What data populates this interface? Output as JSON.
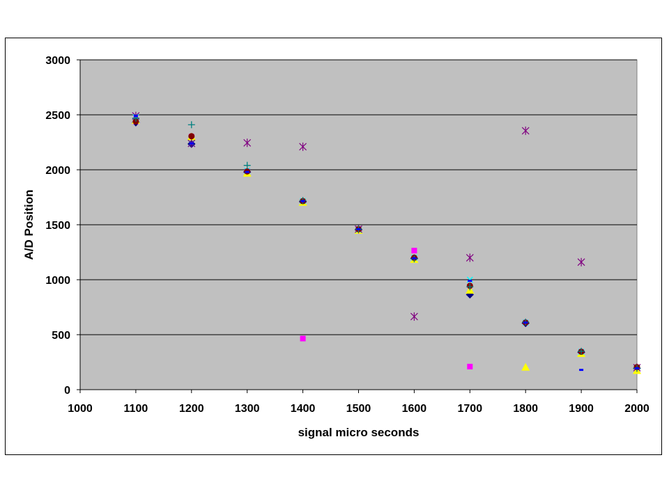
{
  "chart_data": {
    "type": "scatter",
    "title": "",
    "xlabel": "signal micro seconds",
    "ylabel": "A/D Position",
    "xlim": [
      1000,
      2000
    ],
    "ylim": [
      0,
      3000
    ],
    "xticks": [
      1000,
      1100,
      1200,
      1300,
      1400,
      1500,
      1600,
      1700,
      1800,
      1900,
      2000
    ],
    "yticks": [
      0,
      500,
      1000,
      1500,
      2000,
      2500,
      3000
    ],
    "grid": "horizontal",
    "legend": "none",
    "plot_background": "#c0c0c0",
    "series": [
      {
        "color": "#000080",
        "marker": "diamond",
        "x": [
          1100,
          1200,
          1300,
          1400,
          1500,
          1600,
          1700,
          1800,
          1900,
          2000
        ],
        "y": [
          2430,
          2235,
          1980,
          1710,
          1455,
          1195,
          865,
          605,
          340,
          195
        ]
      },
      {
        "color": "#ff00ff",
        "marker": "square",
        "x": [
          1100,
          1200,
          1300,
          1400,
          1500,
          1600,
          1700,
          1800,
          1900,
          2000
        ],
        "y": [
          2440,
          2300,
          1985,
          465,
          1460,
          1265,
          210,
          610,
          345,
          200
        ]
      },
      {
        "color": "#ffff00",
        "marker": "triangle",
        "x": [
          1100,
          1200,
          1300,
          1400,
          1500,
          1600,
          1700,
          1800,
          1900,
          2000
        ],
        "y": [
          2450,
          2300,
          1970,
          1705,
          1450,
          1185,
          905,
          205,
          330,
          175
        ]
      },
      {
        "color": "#00ffff",
        "marker": "x",
        "x": [
          1100,
          1200,
          1300,
          1400,
          1500,
          1600,
          1700,
          1800,
          1900,
          2000
        ],
        "y": [
          2480,
          2240,
          1990,
          1715,
          1455,
          1200,
          1000,
          610,
          345,
          200
        ]
      },
      {
        "color": "#800080",
        "marker": "star",
        "x": [
          1100,
          1200,
          1300,
          1400,
          1500,
          1600,
          1700,
          1800,
          1900,
          2000
        ],
        "y": [
          2490,
          2240,
          2245,
          2210,
          1460,
          665,
          1200,
          2355,
          1160,
          200
        ]
      },
      {
        "color": "#800000",
        "marker": "circle",
        "x": [
          1100,
          1200,
          1300,
          1400,
          1500,
          1600,
          1700,
          1800,
          1900,
          2000
        ],
        "y": [
          2440,
          2305,
          1985,
          1715,
          1460,
          1200,
          945,
          610,
          345,
          205
        ]
      },
      {
        "color": "#008080",
        "marker": "plus",
        "x": [
          1100,
          1200,
          1300,
          1400,
          1500,
          1600,
          1700,
          1800,
          1900,
          2000
        ],
        "y": [
          2470,
          2410,
          2040,
          1720,
          1460,
          1190,
          935,
          615,
          350,
          195
        ]
      },
      {
        "color": "#0000ff",
        "marker": "dash",
        "x": [
          1100,
          1200,
          1300,
          1400,
          1500,
          1600,
          1700,
          1800,
          1900,
          2000
        ],
        "y": [
          2490,
          2240,
          1980,
          1715,
          1460,
          1195,
          990,
          610,
          180,
          195
        ]
      }
    ]
  }
}
